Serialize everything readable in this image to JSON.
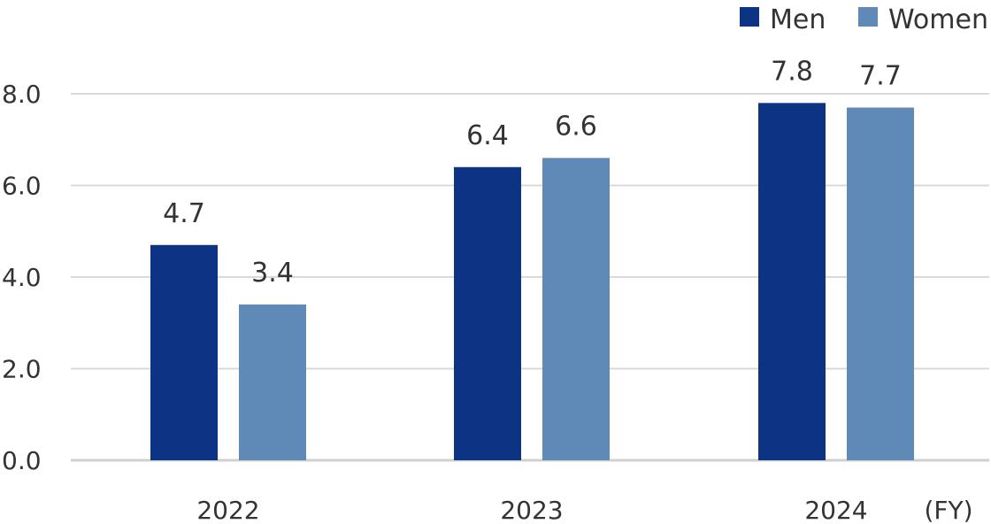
{
  "chart_data": {
    "type": "bar",
    "categories": [
      "2022",
      "2023",
      "2024"
    ],
    "series": [
      {
        "name": "Men",
        "color": "#0c3384",
        "values": [
          4.7,
          6.4,
          7.8
        ]
      },
      {
        "name": "Women",
        "color": "#5f8ab8",
        "values": [
          3.4,
          6.6,
          7.7
        ]
      }
    ],
    "ylim": [
      0,
      8
    ],
    "yticks": [
      "0.0",
      "2.0",
      "4.0",
      "6.0",
      "8.0"
    ],
    "x_unit": "(FY)",
    "grid": true,
    "legend": "top-right",
    "data_labels": [
      "4.7",
      "3.4",
      "6.4",
      "6.6",
      "7.8",
      "7.7"
    ]
  }
}
